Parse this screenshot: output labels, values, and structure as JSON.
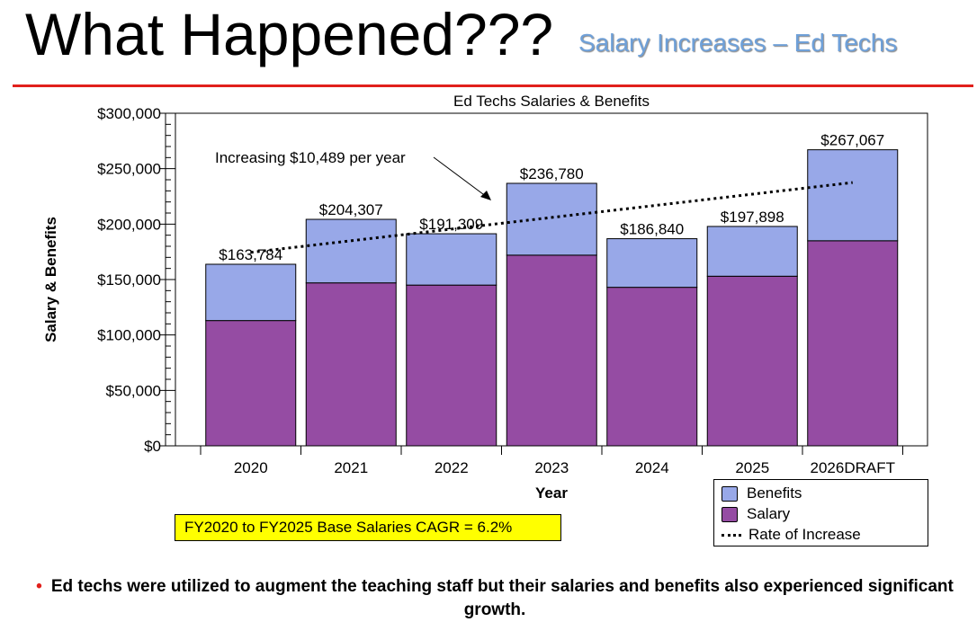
{
  "slide": {
    "title": "What Happened???",
    "subtitle": "Salary Increases – Ed Techs",
    "bullet": "Ed techs were utilized to augment the teaching staff but their salaries and benefits also experienced significant growth."
  },
  "callout": {
    "text": "FY2020 to FY2025 Base Salaries CAGR = 6.2%"
  },
  "legend": {
    "benefits": "Benefits",
    "salary": "Salary",
    "rate": "Rate of Increase"
  },
  "chart_data": {
    "type": "bar",
    "stacked": true,
    "title": "Ed Techs Salaries & Benefits",
    "xlabel": "Year",
    "ylabel": "Salary & Benefits",
    "ylim": [
      0,
      300000
    ],
    "yticks": [
      "$0",
      "$50,000",
      "$100,000",
      "$150,000",
      "$200,000",
      "$250,000",
      "$300,000"
    ],
    "ytick_values": [
      0,
      50000,
      100000,
      150000,
      200000,
      250000,
      300000
    ],
    "categories": [
      "2020",
      "2021",
      "2022",
      "2023",
      "2024",
      "2025",
      "2026DRAFT"
    ],
    "series": [
      {
        "name": "Salary",
        "color": "#954ca3",
        "values": [
          113000,
          147000,
          145000,
          172000,
          143000,
          153000,
          185000
        ]
      },
      {
        "name": "Benefits",
        "color": "#98a8e8",
        "values": [
          50784,
          57307,
          46309,
          64780,
          43840,
          44898,
          82067
        ]
      }
    ],
    "totals": [
      163784,
      204307,
      191309,
      236780,
      186840,
      197898,
      267067
    ],
    "total_labels": [
      "$163,784",
      "$204,307",
      "$191,309",
      "$236,780",
      "$186,840",
      "$197,898",
      "$267,067"
    ],
    "trend": {
      "name": "Rate of Increase",
      "start": 174500,
      "end": 237500
    },
    "annotation": "Increasing $10,489 per year",
    "grid": false,
    "legend_position": "bottom-right"
  }
}
